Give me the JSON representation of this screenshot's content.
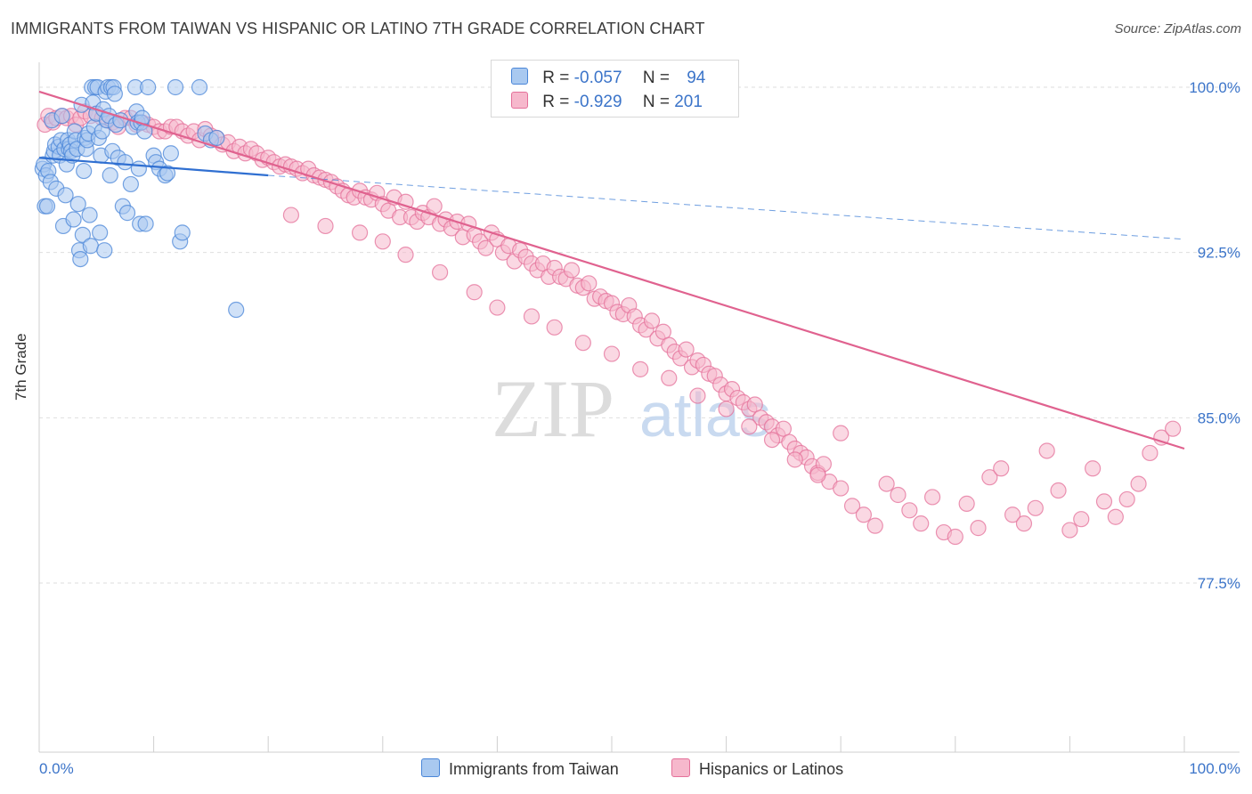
{
  "header": {
    "title": "IMMIGRANTS FROM TAIWAN VS HISPANIC OR LATINO 7TH GRADE CORRELATION CHART",
    "source": "Source: ZipAtlas.com"
  },
  "watermark": {
    "part1": "ZIP",
    "part2": "atlas"
  },
  "legend": {
    "rows": [
      {
        "r_label": "R =",
        "r_value": "-0.057",
        "n_label": "N =",
        "n_value": "94",
        "color": "#a9c9f0"
      },
      {
        "r_label": "R =",
        "r_value": "-0.929",
        "n_label": "N =",
        "n_value": "201",
        "color": "#f6b8cc"
      }
    ]
  },
  "chart_data": {
    "type": "scatter",
    "title": "IMMIGRANTS FROM TAIWAN VS HISPANIC OR LATINO 7TH GRADE CORRELATION CHART",
    "xlabel": "",
    "ylabel": "7th Grade",
    "xlim": [
      0,
      100
    ],
    "ylim": [
      70,
      100.5
    ],
    "x_tick_labels": [
      "0.0%",
      "100.0%"
    ],
    "y_ticks": [
      77.5,
      85.0,
      92.5,
      100.0
    ],
    "y_tick_labels": [
      "77.5%",
      "85.0%",
      "92.5%",
      "100.0%"
    ],
    "grid": "horizontal dashed",
    "legend_position": "top-center",
    "series": [
      {
        "name": "Immigrants from Taiwan",
        "color": "#4a86d8",
        "fill": "#a9c9f0",
        "trend": {
          "x": [
            0,
            20
          ],
          "y": [
            96.8,
            96.0
          ],
          "dashed_to": [
            100,
            93.1
          ]
        },
        "points": [
          [
            0.3,
            96.3
          ],
          [
            0.4,
            96.5
          ],
          [
            0.5,
            94.6
          ],
          [
            0.6,
            96.0
          ],
          [
            0.7,
            94.6
          ],
          [
            0.8,
            96.2
          ],
          [
            1.0,
            95.7
          ],
          [
            1.1,
            98.5
          ],
          [
            1.2,
            96.9
          ],
          [
            1.3,
            97.1
          ],
          [
            1.4,
            97.4
          ],
          [
            1.5,
            95.4
          ],
          [
            1.7,
            97.3
          ],
          [
            1.8,
            96.9
          ],
          [
            1.9,
            97.6
          ],
          [
            2.0,
            98.7
          ],
          [
            2.1,
            93.7
          ],
          [
            2.2,
            97.2
          ],
          [
            2.3,
            95.1
          ],
          [
            2.4,
            96.5
          ],
          [
            2.5,
            97.6
          ],
          [
            2.6,
            97.2
          ],
          [
            2.7,
            97.4
          ],
          [
            2.8,
            97.1
          ],
          [
            2.9,
            96.9
          ],
          [
            3.0,
            94.0
          ],
          [
            3.1,
            98.0
          ],
          [
            3.2,
            97.6
          ],
          [
            3.3,
            97.2
          ],
          [
            3.4,
            94.7
          ],
          [
            3.5,
            92.6
          ],
          [
            3.6,
            92.2
          ],
          [
            3.7,
            99.2
          ],
          [
            3.8,
            93.3
          ],
          [
            3.9,
            96.2
          ],
          [
            4.0,
            97.7
          ],
          [
            4.1,
            97.2
          ],
          [
            4.2,
            97.6
          ],
          [
            4.3,
            97.9
          ],
          [
            4.4,
            94.2
          ],
          [
            4.5,
            92.8
          ],
          [
            4.6,
            100.0
          ],
          [
            4.7,
            99.3
          ],
          [
            4.8,
            98.2
          ],
          [
            4.9,
            100.0
          ],
          [
            5.0,
            98.8
          ],
          [
            5.1,
            100.0
          ],
          [
            5.2,
            97.7
          ],
          [
            5.3,
            93.4
          ],
          [
            5.4,
            96.9
          ],
          [
            5.5,
            98.0
          ],
          [
            5.6,
            99.0
          ],
          [
            5.7,
            92.6
          ],
          [
            5.8,
            99.8
          ],
          [
            5.9,
            98.5
          ],
          [
            6.0,
            100.0
          ],
          [
            6.1,
            98.7
          ],
          [
            6.2,
            96.0
          ],
          [
            6.3,
            100.0
          ],
          [
            6.4,
            97.1
          ],
          [
            6.5,
            100.0
          ],
          [
            6.6,
            99.7
          ],
          [
            6.7,
            98.3
          ],
          [
            6.9,
            96.8
          ],
          [
            7.1,
            98.5
          ],
          [
            7.3,
            94.6
          ],
          [
            7.5,
            96.6
          ],
          [
            7.7,
            94.3
          ],
          [
            8.0,
            95.6
          ],
          [
            8.2,
            98.2
          ],
          [
            8.4,
            100.0
          ],
          [
            8.5,
            98.9
          ],
          [
            8.6,
            98.4
          ],
          [
            8.7,
            96.3
          ],
          [
            8.8,
            93.8
          ],
          [
            8.9,
            98.4
          ],
          [
            9.0,
            98.6
          ],
          [
            9.2,
            98.0
          ],
          [
            9.3,
            93.8
          ],
          [
            9.5,
            100.0
          ],
          [
            10.0,
            96.9
          ],
          [
            10.2,
            96.6
          ],
          [
            10.5,
            96.3
          ],
          [
            11.0,
            96.0
          ],
          [
            11.2,
            96.1
          ],
          [
            11.5,
            97.0
          ],
          [
            11.9,
            100.0
          ],
          [
            12.3,
            93.0
          ],
          [
            12.5,
            93.4
          ],
          [
            14.0,
            100.0
          ],
          [
            14.5,
            97.9
          ],
          [
            15.0,
            97.6
          ],
          [
            15.5,
            97.7
          ],
          [
            17.2,
            89.9
          ]
        ]
      },
      {
        "name": "Hispanics or Latinos",
        "color": "#e4709a",
        "fill": "#f6b8cc",
        "trend": {
          "x": [
            0,
            100
          ],
          "y": [
            99.8,
            83.6
          ]
        },
        "points": [
          [
            0.5,
            98.3
          ],
          [
            0.8,
            98.7
          ],
          [
            1.2,
            98.4
          ],
          [
            1.5,
            98.6
          ],
          [
            2.0,
            98.7
          ],
          [
            2.4,
            98.6
          ],
          [
            2.8,
            98.7
          ],
          [
            3.2,
            98.3
          ],
          [
            3.6,
            98.6
          ],
          [
            4.0,
            98.9
          ],
          [
            4.5,
            98.7
          ],
          [
            5.0,
            98.8
          ],
          [
            5.5,
            98.6
          ],
          [
            6.0,
            98.5
          ],
          [
            6.4,
            98.4
          ],
          [
            6.9,
            98.2
          ],
          [
            7.5,
            98.6
          ],
          [
            8.0,
            98.6
          ],
          [
            8.5,
            98.3
          ],
          [
            9.0,
            98.4
          ],
          [
            9.5,
            98.3
          ],
          [
            10.0,
            98.2
          ],
          [
            10.5,
            98.0
          ],
          [
            11.0,
            98.0
          ],
          [
            11.5,
            98.2
          ],
          [
            12.0,
            98.2
          ],
          [
            12.5,
            98.0
          ],
          [
            13.0,
            97.8
          ],
          [
            13.5,
            98.0
          ],
          [
            14.0,
            97.6
          ],
          [
            14.5,
            98.1
          ],
          [
            15.0,
            97.8
          ],
          [
            15.5,
            97.7
          ],
          [
            16.0,
            97.4
          ],
          [
            16.5,
            97.5
          ],
          [
            17.0,
            97.1
          ],
          [
            17.5,
            97.3
          ],
          [
            18.0,
            97.0
          ],
          [
            18.5,
            97.2
          ],
          [
            19.0,
            97.0
          ],
          [
            19.5,
            96.7
          ],
          [
            20.0,
            96.8
          ],
          [
            20.5,
            96.6
          ],
          [
            21.0,
            96.4
          ],
          [
            21.5,
            96.5
          ],
          [
            22.0,
            96.4
          ],
          [
            22.5,
            96.3
          ],
          [
            23.0,
            96.1
          ],
          [
            23.5,
            96.3
          ],
          [
            24.0,
            96.0
          ],
          [
            24.5,
            95.9
          ],
          [
            25.0,
            95.8
          ],
          [
            25.5,
            95.7
          ],
          [
            26.0,
            95.5
          ],
          [
            26.5,
            95.3
          ],
          [
            27.0,
            95.1
          ],
          [
            27.5,
            95.0
          ],
          [
            28.0,
            95.3
          ],
          [
            28.5,
            95.0
          ],
          [
            29.0,
            94.9
          ],
          [
            29.5,
            95.2
          ],
          [
            30.0,
            94.7
          ],
          [
            30.5,
            94.4
          ],
          [
            31.0,
            95.0
          ],
          [
            31.5,
            94.1
          ],
          [
            32.0,
            94.8
          ],
          [
            32.5,
            94.1
          ],
          [
            33.0,
            93.9
          ],
          [
            33.5,
            94.3
          ],
          [
            34.0,
            94.1
          ],
          [
            34.5,
            94.6
          ],
          [
            35.0,
            93.8
          ],
          [
            35.5,
            94.0
          ],
          [
            36.0,
            93.6
          ],
          [
            36.5,
            93.9
          ],
          [
            37.0,
            93.2
          ],
          [
            37.5,
            93.8
          ],
          [
            38.0,
            93.3
          ],
          [
            38.5,
            93.0
          ],
          [
            39.0,
            92.7
          ],
          [
            39.5,
            93.4
          ],
          [
            40.0,
            93.1
          ],
          [
            40.5,
            92.5
          ],
          [
            41.0,
            92.8
          ],
          [
            41.5,
            92.1
          ],
          [
            42.0,
            92.6
          ],
          [
            42.5,
            92.3
          ],
          [
            43.0,
            92.0
          ],
          [
            43.5,
            91.7
          ],
          [
            44.0,
            92.0
          ],
          [
            44.5,
            91.4
          ],
          [
            45.0,
            91.8
          ],
          [
            45.5,
            91.4
          ],
          [
            46.0,
            91.3
          ],
          [
            46.5,
            91.7
          ],
          [
            47.0,
            91.0
          ],
          [
            47.5,
            90.9
          ],
          [
            48.0,
            91.1
          ],
          [
            48.5,
            90.4
          ],
          [
            49.0,
            90.5
          ],
          [
            49.5,
            90.3
          ],
          [
            50.0,
            90.2
          ],
          [
            50.5,
            89.8
          ],
          [
            51.0,
            89.7
          ],
          [
            51.5,
            90.1
          ],
          [
            52.0,
            89.6
          ],
          [
            52.5,
            89.2
          ],
          [
            53.0,
            89.0
          ],
          [
            53.5,
            89.4
          ],
          [
            54.0,
            88.6
          ],
          [
            54.5,
            88.9
          ],
          [
            55.0,
            88.3
          ],
          [
            55.5,
            88.0
          ],
          [
            56.0,
            87.7
          ],
          [
            56.5,
            88.1
          ],
          [
            57.0,
            87.3
          ],
          [
            57.5,
            87.6
          ],
          [
            58.0,
            87.4
          ],
          [
            58.5,
            87.0
          ],
          [
            59.0,
            86.9
          ],
          [
            59.5,
            86.5
          ],
          [
            60.0,
            86.1
          ],
          [
            60.5,
            86.3
          ],
          [
            61.0,
            85.9
          ],
          [
            61.5,
            85.7
          ],
          [
            62.0,
            85.4
          ],
          [
            62.5,
            85.6
          ],
          [
            63.0,
            85.0
          ],
          [
            63.5,
            84.8
          ],
          [
            64.0,
            84.6
          ],
          [
            64.5,
            84.2
          ],
          [
            65.0,
            84.5
          ],
          [
            65.5,
            83.9
          ],
          [
            66.0,
            83.6
          ],
          [
            66.5,
            83.4
          ],
          [
            67.0,
            83.2
          ],
          [
            67.5,
            82.8
          ],
          [
            68.0,
            82.5
          ],
          [
            68.5,
            82.9
          ],
          [
            69.0,
            82.1
          ],
          [
            70.0,
            81.8
          ],
          [
            71.0,
            81.0
          ],
          [
            72.0,
            80.6
          ],
          [
            73.0,
            80.1
          ],
          [
            74.0,
            82.0
          ],
          [
            75.0,
            81.5
          ],
          [
            76.0,
            80.8
          ],
          [
            77.0,
            80.2
          ],
          [
            78.0,
            81.4
          ],
          [
            79.0,
            79.8
          ],
          [
            80.0,
            79.6
          ],
          [
            81.0,
            81.1
          ],
          [
            82.0,
            80.0
          ],
          [
            83.0,
            82.3
          ],
          [
            84.0,
            82.7
          ],
          [
            85.0,
            80.6
          ],
          [
            86.0,
            80.2
          ],
          [
            87.0,
            80.9
          ],
          [
            88.0,
            83.5
          ],
          [
            89.0,
            81.7
          ],
          [
            90.0,
            79.9
          ],
          [
            91.0,
            80.4
          ],
          [
            92.0,
            82.7
          ],
          [
            93.0,
            81.2
          ],
          [
            94.0,
            80.5
          ],
          [
            95.0,
            81.3
          ],
          [
            96.0,
            82.0
          ],
          [
            97.0,
            83.4
          ],
          [
            98.0,
            84.1
          ],
          [
            99.0,
            84.5
          ],
          [
            22.0,
            94.2
          ],
          [
            25.0,
            93.7
          ],
          [
            28.0,
            93.4
          ],
          [
            30.0,
            93.0
          ],
          [
            32.0,
            92.4
          ],
          [
            35.0,
            91.6
          ],
          [
            38.0,
            90.7
          ],
          [
            40.0,
            90.0
          ],
          [
            43.0,
            89.6
          ],
          [
            45.0,
            89.1
          ],
          [
            47.5,
            88.4
          ],
          [
            50.0,
            87.9
          ],
          [
            52.5,
            87.2
          ],
          [
            55.0,
            86.8
          ],
          [
            57.5,
            86.0
          ],
          [
            60.0,
            85.4
          ],
          [
            62.0,
            84.6
          ],
          [
            64.0,
            84.0
          ],
          [
            66.0,
            83.1
          ],
          [
            68.0,
            82.4
          ],
          [
            70.0,
            84.3
          ]
        ]
      }
    ]
  },
  "bottom_legend": [
    {
      "label": "Immigrants from Taiwan",
      "color": "#a9c9f0",
      "border": "#4a86d8"
    },
    {
      "label": "Hispanics or Latinos",
      "color": "#f6b8cc",
      "border": "#e4709a"
    }
  ]
}
